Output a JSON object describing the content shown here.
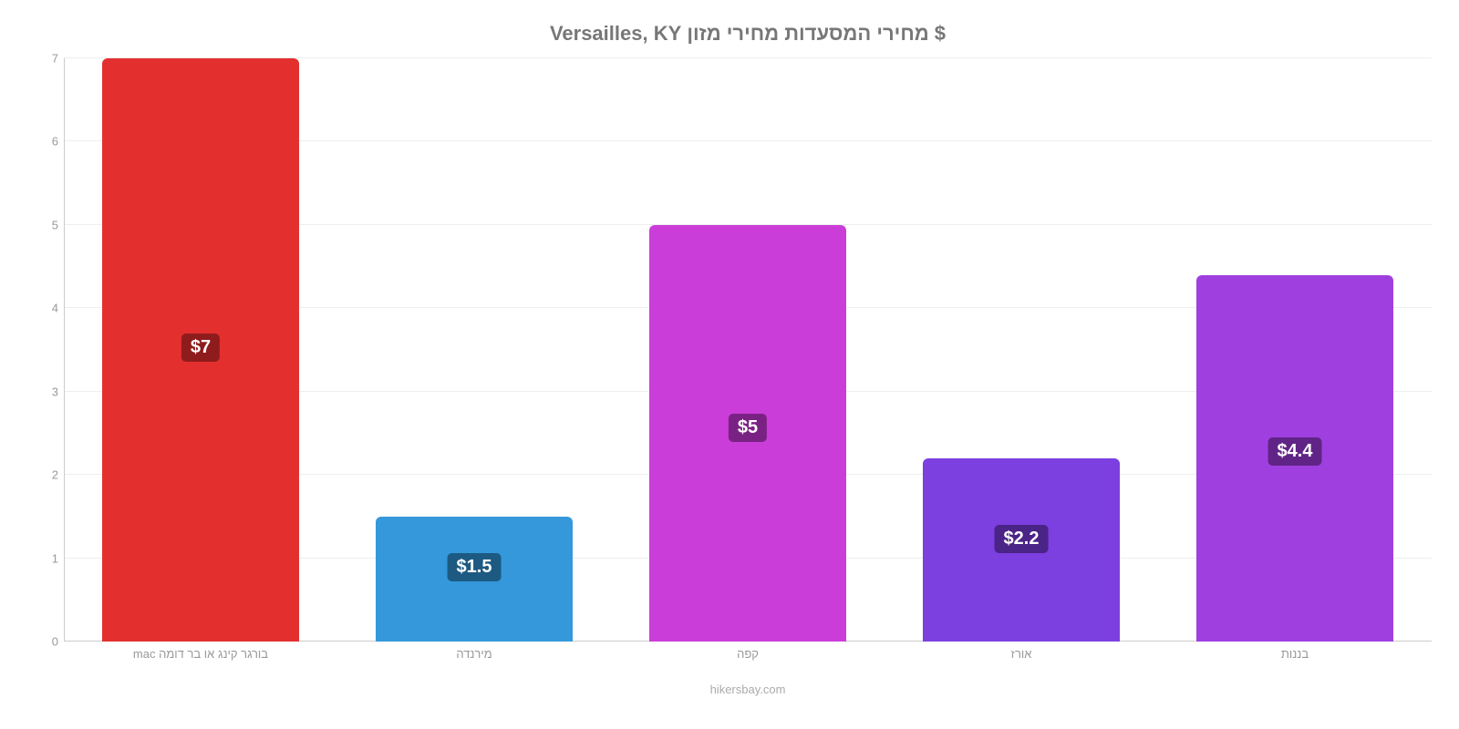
{
  "chart": {
    "type": "bar",
    "title": "$ מחירי המסעדות מחירי מזון Versailles, KY",
    "title_fontsize": 22,
    "title_color": "#777777",
    "background_color": "#ffffff",
    "grid_color": "#eeeeee",
    "axis_line_color": "#cccccc",
    "tick_color": "#999999",
    "label_fontsize": 13,
    "ylim": [
      0,
      7
    ],
    "yticks": [
      0,
      1,
      2,
      3,
      4,
      5,
      6,
      7
    ],
    "bar_width": 0.72,
    "categories": [
      "בורגר קינג או בר דומה mac",
      "מירנדה",
      "קפה",
      "אורז",
      "בננות"
    ],
    "values": [
      7,
      1.5,
      5,
      2.2,
      4.4
    ],
    "bar_colors": [
      "#e3302f",
      "#3498db",
      "#cb3dd8",
      "#7c3fe0",
      "#a03fe0"
    ],
    "value_label_colors": [
      "#8f1c1c",
      "#1d5a82",
      "#7a2283",
      "#4a2486",
      "#602486"
    ],
    "value_labels": [
      "$7",
      "$1.5",
      "$5",
      "$2.2",
      "$4.4"
    ],
    "caption": "hikersbay.com"
  }
}
